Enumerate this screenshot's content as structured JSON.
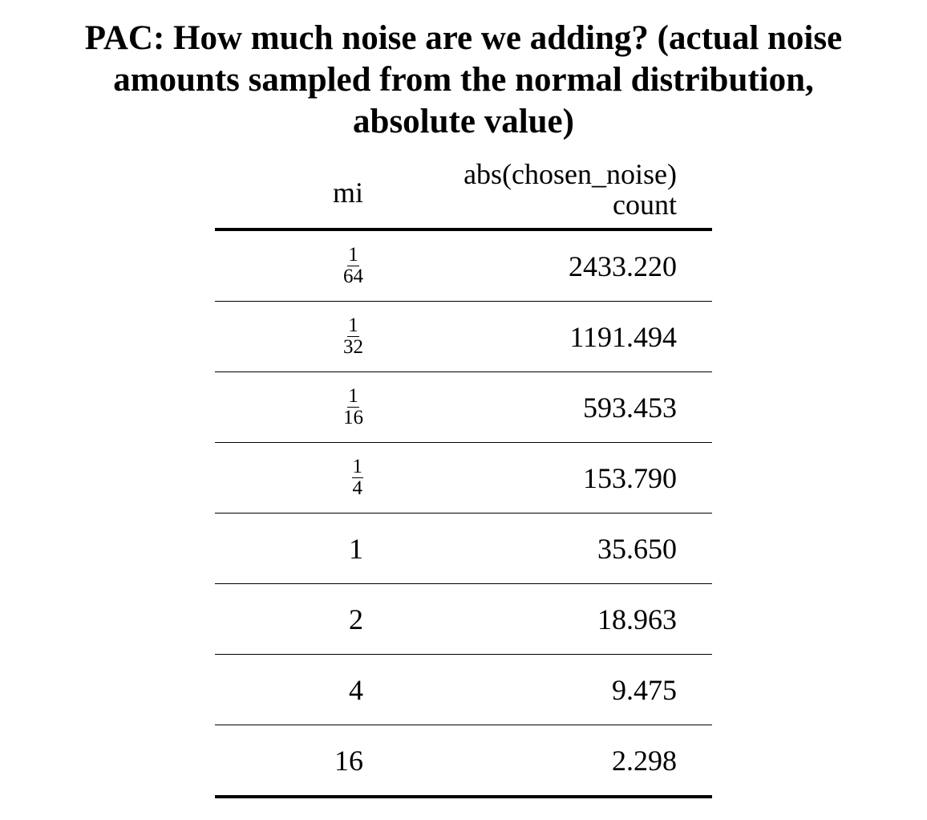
{
  "title_lines": [
    "PAC: How much noise are we adding? (actual noise",
    "amounts sampled from the normal distribution,",
    "absolute value)"
  ],
  "columns": {
    "mi": "mi",
    "value_line1": "abs(chosen_noise)",
    "value_line2": "count"
  },
  "rows": [
    {
      "mi_num": "1",
      "mi_den": "64",
      "value": "2433.220"
    },
    {
      "mi_num": "1",
      "mi_den": "32",
      "value": "1191.494"
    },
    {
      "mi_num": "1",
      "mi_den": "16",
      "value": "593.453"
    },
    {
      "mi_num": "1",
      "mi_den": "4",
      "value": "153.790"
    },
    {
      "mi": "1",
      "value": "35.650"
    },
    {
      "mi": "2",
      "value": "18.963"
    },
    {
      "mi": "4",
      "value": "9.475"
    },
    {
      "mi": "16",
      "value": "2.298"
    }
  ]
}
